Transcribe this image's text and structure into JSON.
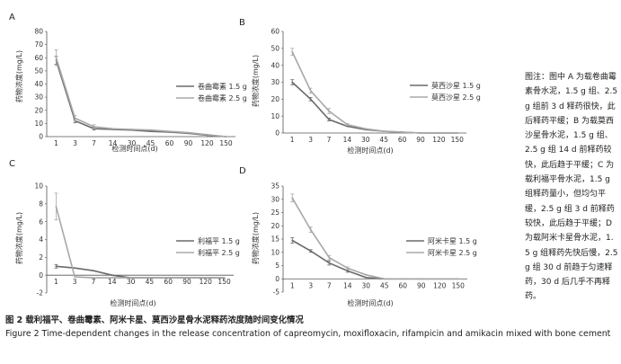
{
  "chart_data": [
    {
      "panel": "A",
      "type": "line",
      "categories": [
        "1",
        "3",
        "7",
        "14",
        "30",
        "45",
        "60",
        "90",
        "120",
        "150"
      ],
      "ylabel": "药物浓度(mg/L)",
      "xlabel": "检测时间点(d)",
      "yticks": [
        "0",
        "10",
        "20",
        "30",
        "40",
        "50",
        "60",
        "70",
        "80"
      ],
      "ylim": [
        0,
        80
      ],
      "grid": false,
      "legend_position": "right",
      "series": [
        {
          "name": "卷曲霉素 1.5 g",
          "values": [
            58,
            12,
            6,
            5.5,
            5,
            4,
            3.5,
            2.5,
            1,
            0
          ],
          "errors": [
            3,
            1.5,
            1,
            0,
            0,
            0,
            0,
            0,
            0,
            0
          ]
        },
        {
          "name": "卷曲霉素 2.5 g",
          "values": [
            60,
            14,
            7.5,
            6,
            5.5,
            5,
            4,
            3,
            1.5,
            0
          ],
          "errors": [
            6,
            2,
            1.5,
            0,
            0,
            0,
            0,
            0,
            0,
            0
          ]
        }
      ]
    },
    {
      "panel": "B",
      "type": "line",
      "categories": [
        "1",
        "3",
        "7",
        "14",
        "30",
        "45",
        "60",
        "90",
        "120",
        "150"
      ],
      "ylabel": "药物浓度(mg/L)",
      "xlabel": "检测时间点(d)",
      "yticks": [
        "0",
        "10",
        "20",
        "30",
        "40",
        "50",
        "60"
      ],
      "ylim": [
        0,
        60
      ],
      "grid": false,
      "legend_position": "right",
      "series": [
        {
          "name": "莫西沙星 1.5 g",
          "values": [
            30,
            20,
            8,
            4,
            2,
            1,
            0.5,
            0,
            0,
            0
          ],
          "errors": [
            1.5,
            1,
            0.8,
            0,
            0,
            0,
            0,
            0,
            0,
            0
          ]
        },
        {
          "name": "莫西沙星 2.5 g",
          "values": [
            48,
            25,
            13,
            5,
            2.5,
            1,
            0.5,
            0,
            0,
            0
          ],
          "errors": [
            2,
            1.5,
            1.5,
            0.5,
            0,
            0,
            0,
            0,
            0,
            0
          ]
        }
      ]
    },
    {
      "panel": "C",
      "type": "line",
      "categories": [
        "1",
        "3",
        "7",
        "14",
        "30",
        "45",
        "60",
        "90",
        "120",
        "150"
      ],
      "ylabel": "药物浓度(mg/L)",
      "xlabel": "检测时间点(d)",
      "yticks": [
        "-2",
        "0",
        "2",
        "4",
        "6",
        "8",
        "10"
      ],
      "ylim": [
        -2,
        10
      ],
      "grid": false,
      "legend_position": "right",
      "series": [
        {
          "name": "利福平 1.5 g",
          "values": [
            1,
            0.8,
            0.5,
            0,
            -0.3,
            -0.3,
            -0.3,
            -0.3,
            -0.3,
            -0.3
          ],
          "errors": [
            0.2,
            0,
            0,
            0,
            0,
            0,
            0,
            0,
            0,
            0
          ]
        },
        {
          "name": "利福平 2.5 g",
          "values": [
            7.7,
            -0.2,
            -0.3,
            -0.3,
            -0.3,
            -0.3,
            -0.3,
            -0.3,
            -0.3,
            -0.3
          ],
          "errors": [
            1.5,
            0,
            0,
            0,
            0,
            0,
            0,
            0,
            0,
            0
          ]
        }
      ]
    },
    {
      "panel": "D",
      "type": "line",
      "categories": [
        "1",
        "3",
        "7",
        "14",
        "30",
        "45",
        "60",
        "90",
        "120",
        "150"
      ],
      "ylabel": "药物浓度(mg/L)",
      "xlabel": "检测时间点(d)",
      "yticks": [
        "-5",
        "0",
        "5",
        "10",
        "15",
        "20",
        "25",
        "30",
        "35"
      ],
      "ylim": [
        -5,
        35
      ],
      "grid": false,
      "legend_position": "right",
      "series": [
        {
          "name": "阿米卡星 1.5 g",
          "values": [
            14.5,
            10.5,
            6,
            3,
            0.5,
            0,
            0,
            0,
            0,
            0
          ],
          "errors": [
            1,
            0.5,
            0.8,
            0.5,
            0,
            0,
            0,
            0,
            0,
            0
          ]
        },
        {
          "name": "阿米卡星 2.5 g",
          "values": [
            30.5,
            18.5,
            8,
            4,
            1.5,
            0,
            0,
            0,
            0,
            0
          ],
          "errors": [
            1.5,
            1,
            0.8,
            0.5,
            0,
            0,
            0,
            0,
            0,
            0
          ]
        }
      ]
    }
  ],
  "note": "图注：图中 A 为载卷曲霉素骨水泥，1.5 g 组、2.5 g 组前 3 d 释药很快，此后释药平缓；B 为载莫西沙星骨水泥，1.5 g 组、2.5 g 组 14 d 前释药较快，此后趋于平缓；C 为载利福平骨水泥，1.5 g 组释药量小，但均匀平缓，2.5 g 组 3 d 前释药较快，此后趋于平缓；D 为载阿米卡星骨水泥，1.5 g 组释药先快后慢，2.5 g 组 30 d 前趋于匀速释药，30 d 后几乎不再释药。",
  "caption_cn": "图 2   载利福平、卷曲霉素、阿米卡星、莫西沙星骨水泥释药浓度随时间变化情况",
  "caption_en": "Figure 2    Time-dependent changes in the release concentration of capreomycin, moxifloxacin, rifampicin and amikacin mixed with bone cement",
  "colors": {
    "series_1": "#6a6a6a",
    "series_2": "#a8a8a8",
    "axis": "#555555"
  }
}
